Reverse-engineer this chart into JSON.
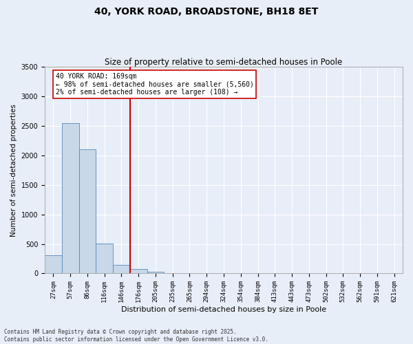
{
  "title_line1": "40, YORK ROAD, BROADSTONE, BH18 8ET",
  "title_line2": "Size of property relative to semi-detached houses in Poole",
  "xlabel": "Distribution of semi-detached houses by size in Poole",
  "ylabel": "Number of semi-detached properties",
  "categories": [
    "27sqm",
    "57sqm",
    "86sqm",
    "116sqm",
    "146sqm",
    "176sqm",
    "205sqm",
    "235sqm",
    "265sqm",
    "294sqm",
    "324sqm",
    "354sqm",
    "384sqm",
    "413sqm",
    "443sqm",
    "473sqm",
    "502sqm",
    "532sqm",
    "562sqm",
    "591sqm",
    "621sqm"
  ],
  "values": [
    310,
    2550,
    2100,
    510,
    150,
    80,
    30,
    5,
    0,
    0,
    0,
    0,
    0,
    0,
    0,
    0,
    0,
    0,
    0,
    0,
    0
  ],
  "bar_color": "#c8d8e8",
  "bar_edge_color": "#5588bb",
  "vline_color": "#cc0000",
  "annotation_text": "40 YORK ROAD: 169sqm\n← 98% of semi-detached houses are smaller (5,560)\n2% of semi-detached houses are larger (108) →",
  "annotation_box_color": "#ffffff",
  "annotation_edge_color": "#cc0000",
  "ylim": [
    0,
    3500
  ],
  "yticks": [
    0,
    500,
    1000,
    1500,
    2000,
    2500,
    3000,
    3500
  ],
  "background_color": "#e8eef8",
  "plot_bg_color": "#e8eef8",
  "grid_color": "#ffffff",
  "footnote": "Contains HM Land Registry data © Crown copyright and database right 2025.\nContains public sector information licensed under the Open Government Licence v3.0.",
  "title_fontsize": 10,
  "subtitle_fontsize": 8.5,
  "tick_fontsize": 6.5,
  "ylabel_fontsize": 7.5,
  "xlabel_fontsize": 8,
  "annot_fontsize": 7,
  "footnote_fontsize": 5.5
}
